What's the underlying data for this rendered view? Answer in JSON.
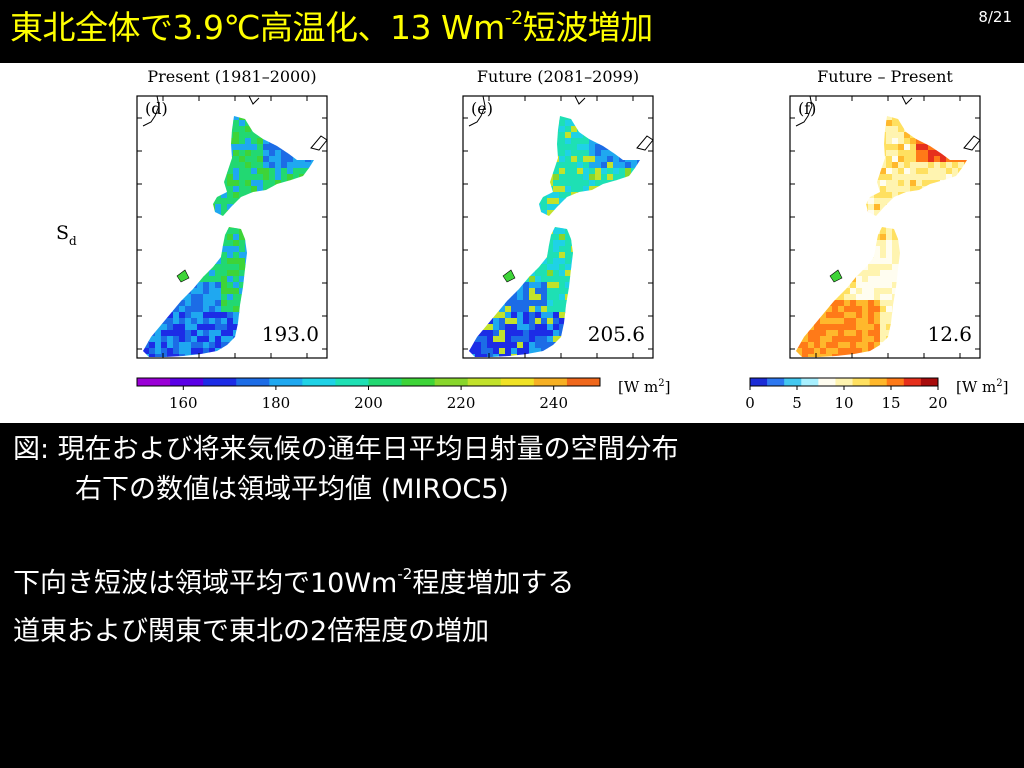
{
  "slide": {
    "title_main": "東北全体で3.9℃高温化、13 Wm",
    "title_sup": "-2",
    "title_end": "短波増加",
    "page_number": "8/21"
  },
  "caption": {
    "line1": "図: 現在および将来気候の通年日平均日射量の空間分布",
    "line2": "右下の数値は領域平均値 (MIROC5)"
  },
  "body": {
    "line1_a": "下向き短波は領域平均で10Wm",
    "line1_sup": "-2",
    "line1_b": "程度増加する",
    "line2": "道東および関東で東北の2倍程度の増加"
  },
  "figure": {
    "row_label_main": "S",
    "row_label_sub": "d"
  },
  "chart_data": [
    {
      "type": "heatmap",
      "panel": "d",
      "title": "Present (1981–2000)",
      "panel_label": "(d)",
      "mean_value": "193.0",
      "colorbar": "absolute"
    },
    {
      "type": "heatmap",
      "panel": "e",
      "title": "Future (2081–2099)",
      "panel_label": "(e)",
      "mean_value": "205.6",
      "colorbar": "absolute"
    },
    {
      "type": "heatmap",
      "panel": "f",
      "title": "Future – Present",
      "panel_label": "(f)",
      "mean_value": "12.6",
      "colorbar": "difference"
    }
  ],
  "colorbars": {
    "absolute": {
      "ticks": [
        "160",
        "180",
        "200",
        "220",
        "240"
      ],
      "tick_values": [
        160,
        180,
        200,
        220,
        240
      ],
      "range": [
        150,
        250
      ],
      "unit": "[W m",
      "unit_sup": "2",
      "unit_end": "]",
      "colors": [
        "#9a00d6",
        "#5a00e6",
        "#1c2ce6",
        "#1c6ce6",
        "#1fa8f0",
        "#1fd2e6",
        "#1ee0b4",
        "#22d872",
        "#3ed438",
        "#88d62c",
        "#c2e22c",
        "#f0e226",
        "#f6b024",
        "#f0681c"
      ]
    },
    "difference": {
      "ticks": [
        "0",
        "5",
        "10",
        "15",
        "20"
      ],
      "tick_values": [
        0,
        5,
        10,
        15,
        20
      ],
      "range": [
        0,
        20
      ],
      "unit": "[W m",
      "unit_sup": "2",
      "unit_end": "]",
      "colors": [
        "#1c2cd6",
        "#2e78f0",
        "#44c8f0",
        "#a8f0ff",
        "#fffdf0",
        "#fff4b0",
        "#ffe060",
        "#ffb82c",
        "#ff7a18",
        "#e6301c",
        "#a80c0c"
      ]
    }
  },
  "palette": {
    "title": "#ffff00",
    "text": "#ffffff",
    "background": "#000000"
  }
}
